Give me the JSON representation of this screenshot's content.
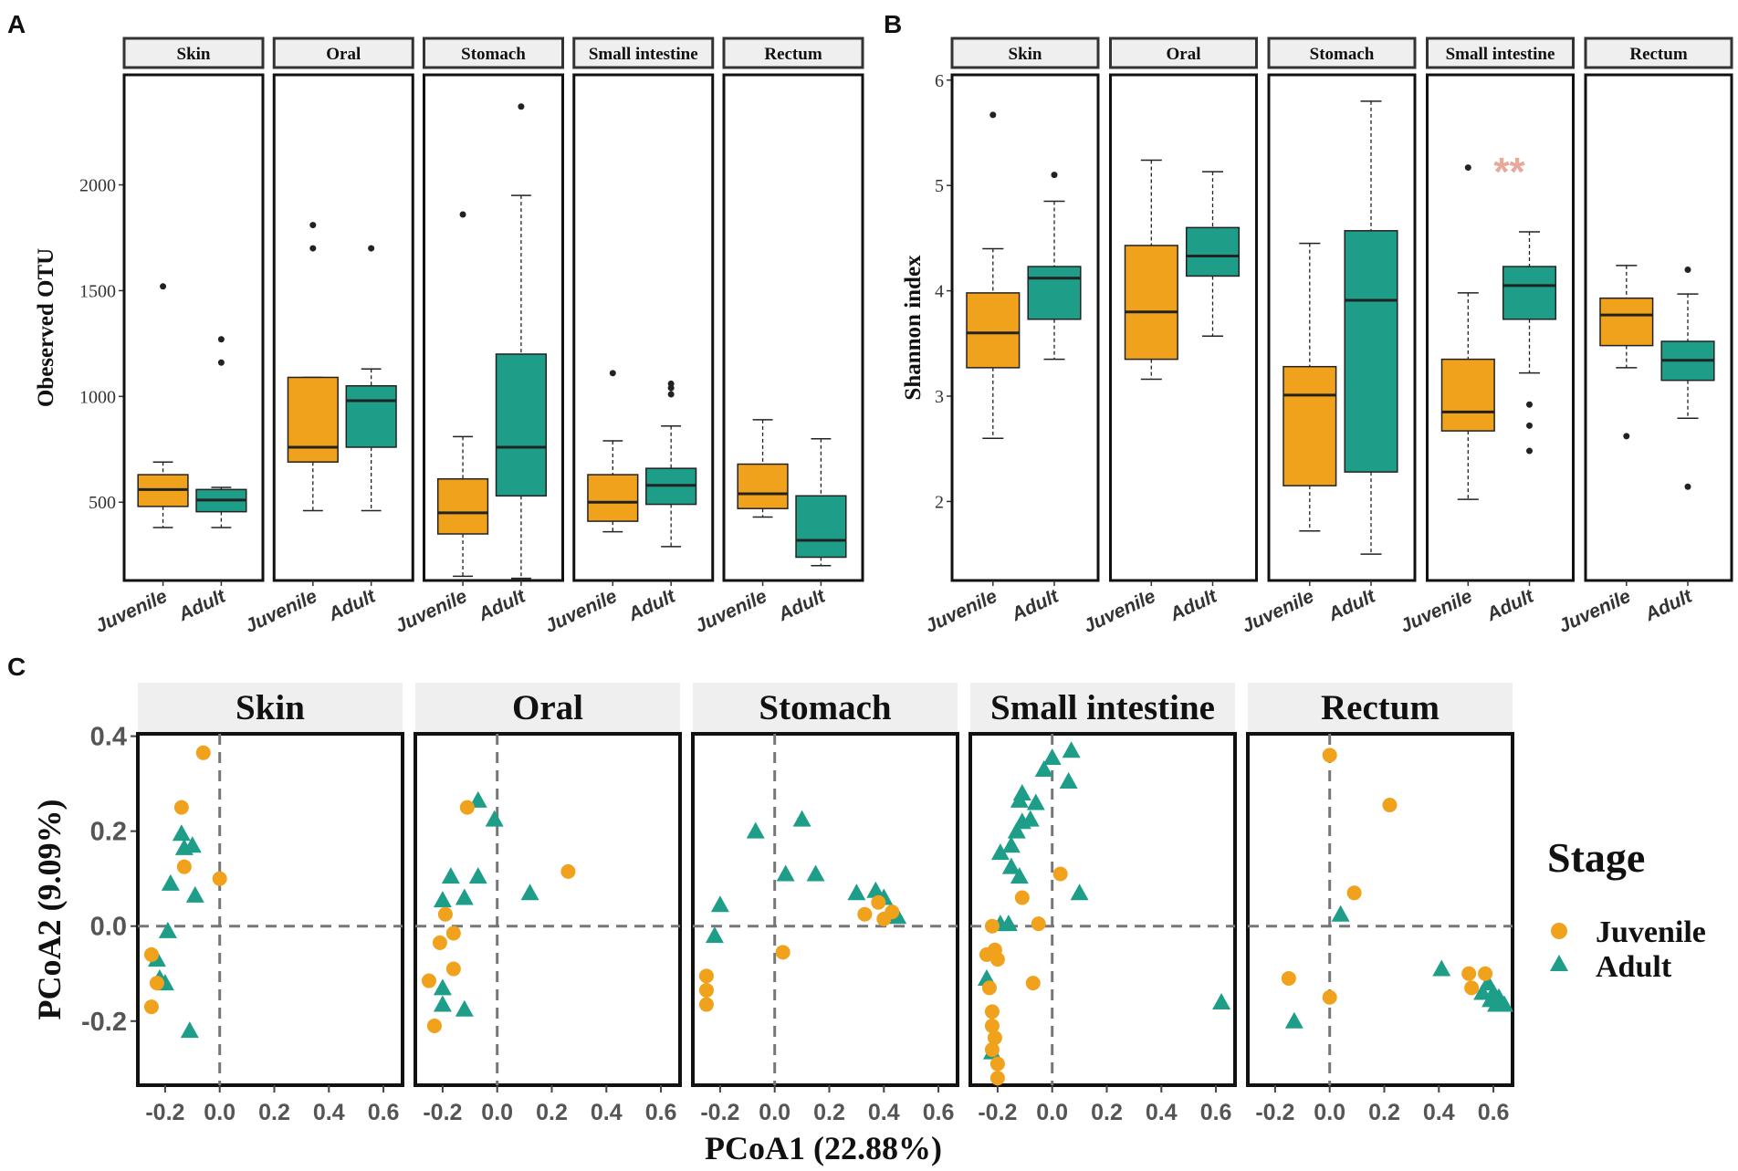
{
  "colors": {
    "juvenile": "#F0A21C",
    "adult": "#1E9E88",
    "panel_border": "#222222",
    "strip_fill": "#EFEFEF",
    "significance": "#E8A89A",
    "dashed": "#777777"
  },
  "panel_letters": [
    "A",
    "B",
    "C"
  ],
  "chart_data": [
    {
      "id": "A",
      "type": "box",
      "ylabel": "Obeserved OTU",
      "ylim": [
        130,
        2520
      ],
      "yticks": [
        500,
        1000,
        1500,
        2000
      ],
      "groups": [
        "Juvenile",
        "Adult"
      ],
      "facets": [
        {
          "title": "Skin",
          "boxes": [
            {
              "group": "Juvenile",
              "min": 380,
              "q1": 480,
              "median": 560,
              "q3": 630,
              "max": 690,
              "outliers": [
                1520
              ]
            },
            {
              "group": "Adult",
              "min": 380,
              "q1": 455,
              "median": 510,
              "q3": 560,
              "max": 570,
              "outliers": [
                1160,
                1270
              ]
            }
          ]
        },
        {
          "title": "Oral",
          "boxes": [
            {
              "group": "Juvenile",
              "min": 460,
              "q1": 690,
              "median": 760,
              "q3": 1090,
              "max": 1090,
              "outliers": [
                1700,
                1810
              ]
            },
            {
              "group": "Adult",
              "min": 460,
              "q1": 760,
              "median": 980,
              "q3": 1050,
              "max": 1130,
              "outliers": [
                1700
              ]
            }
          ]
        },
        {
          "title": "Stomach",
          "boxes": [
            {
              "group": "Juvenile",
              "min": 150,
              "q1": 350,
              "median": 450,
              "q3": 610,
              "max": 810,
              "outliers": [
                1860
              ]
            },
            {
              "group": "Adult",
              "min": 140,
              "q1": 530,
              "median": 760,
              "q3": 1200,
              "max": 1950,
              "outliers": [
                2370
              ]
            }
          ]
        },
        {
          "title": "Small intestine",
          "boxes": [
            {
              "group": "Juvenile",
              "min": 360,
              "q1": 410,
              "median": 500,
              "q3": 630,
              "max": 790,
              "outliers": [
                1110
              ]
            },
            {
              "group": "Adult",
              "min": 290,
              "q1": 490,
              "median": 580,
              "q3": 660,
              "max": 860,
              "outliers": [
                1010,
                1040,
                1060
              ]
            }
          ]
        },
        {
          "title": "Rectum",
          "boxes": [
            {
              "group": "Juvenile",
              "min": 430,
              "q1": 470,
              "median": 540,
              "q3": 680,
              "max": 890,
              "outliers": []
            },
            {
              "group": "Adult",
              "min": 200,
              "q1": 240,
              "median": 320,
              "q3": 530,
              "max": 800,
              "outliers": []
            }
          ]
        }
      ]
    },
    {
      "id": "B",
      "type": "box",
      "ylabel": "Shannon index",
      "ylim": [
        1.25,
        6.05
      ],
      "yticks": [
        2,
        3,
        4,
        5,
        6
      ],
      "groups": [
        "Juvenile",
        "Adult"
      ],
      "facets": [
        {
          "title": "Skin",
          "boxes": [
            {
              "group": "Juvenile",
              "min": 2.6,
              "q1": 3.27,
              "median": 3.6,
              "q3": 3.98,
              "max": 4.4,
              "outliers": [
                5.67
              ]
            },
            {
              "group": "Adult",
              "min": 3.35,
              "q1": 3.73,
              "median": 4.12,
              "q3": 4.23,
              "max": 4.85,
              "outliers": [
                5.1
              ]
            }
          ]
        },
        {
          "title": "Oral",
          "boxes": [
            {
              "group": "Juvenile",
              "min": 3.16,
              "q1": 3.35,
              "median": 3.8,
              "q3": 4.43,
              "max": 5.24,
              "outliers": []
            },
            {
              "group": "Adult",
              "min": 3.57,
              "q1": 4.14,
              "median": 4.33,
              "q3": 4.6,
              "max": 5.13,
              "outliers": []
            }
          ]
        },
        {
          "title": "Stomach",
          "boxes": [
            {
              "group": "Juvenile",
              "min": 1.72,
              "q1": 2.15,
              "median": 3.01,
              "q3": 3.28,
              "max": 4.45,
              "outliers": []
            },
            {
              "group": "Adult",
              "min": 1.5,
              "q1": 2.28,
              "median": 3.91,
              "q3": 4.57,
              "max": 5.8,
              "outliers": []
            }
          ]
        },
        {
          "title": "Small intestine",
          "annotation": "**",
          "boxes": [
            {
              "group": "Juvenile",
              "min": 2.02,
              "q1": 2.67,
              "median": 2.85,
              "q3": 3.35,
              "max": 3.98,
              "outliers": [
                5.17
              ]
            },
            {
              "group": "Adult",
              "min": 3.22,
              "q1": 3.73,
              "median": 4.05,
              "q3": 4.23,
              "max": 4.56,
              "outliers": [
                2.48,
                2.72,
                2.92
              ]
            }
          ]
        },
        {
          "title": "Rectum",
          "boxes": [
            {
              "group": "Juvenile",
              "min": 3.27,
              "q1": 3.48,
              "median": 3.77,
              "q3": 3.93,
              "max": 4.24,
              "outliers": [
                2.62
              ]
            },
            {
              "group": "Adult",
              "min": 2.79,
              "q1": 3.15,
              "median": 3.34,
              "q3": 3.52,
              "max": 3.97,
              "outliers": [
                2.14,
                4.2
              ]
            }
          ]
        }
      ]
    },
    {
      "id": "C",
      "type": "scatter",
      "xlabel": "PCoA1 (22.88%)",
      "ylabel": "PCoA2 (9.09%)",
      "xlim": [
        -0.3,
        0.67
      ],
      "ylim": [
        -0.335,
        0.405
      ],
      "xticks": [
        -0.2,
        0.0,
        0.2,
        0.4,
        0.6
      ],
      "xtick_labels": [
        "-0.2",
        "0.0",
        "0.2",
        "0.4",
        "0.6"
      ],
      "yticks": [
        -0.2,
        0.0,
        0.2,
        0.4
      ],
      "ytick_labels": [
        "-0.2",
        "0.0",
        "0.2",
        "0.4"
      ],
      "legend": {
        "title": "Stage",
        "entries": [
          "Juvenile",
          "Adult"
        ]
      },
      "facets": [
        {
          "title": "Skin",
          "juvenile": [
            [
              -0.06,
              0.365
            ],
            [
              -0.14,
              0.25
            ],
            [
              -0.13,
              0.125
            ],
            [
              0.0,
              0.1
            ],
            [
              -0.25,
              -0.06
            ],
            [
              -0.23,
              -0.12
            ],
            [
              -0.25,
              -0.17
            ]
          ],
          "adult": [
            [
              -0.14,
              0.195
            ],
            [
              -0.1,
              0.17
            ],
            [
              -0.13,
              0.165
            ],
            [
              -0.18,
              0.09
            ],
            [
              -0.09,
              0.065
            ],
            [
              -0.19,
              -0.01
            ],
            [
              -0.23,
              -0.07
            ],
            [
              -0.2,
              -0.12
            ],
            [
              -0.22,
              -0.11
            ],
            [
              -0.11,
              -0.22
            ]
          ]
        },
        {
          "title": "Oral",
          "juvenile": [
            [
              -0.11,
              0.25
            ],
            [
              0.26,
              0.115
            ],
            [
              -0.19,
              0.025
            ],
            [
              -0.21,
              -0.035
            ],
            [
              -0.16,
              -0.015
            ],
            [
              -0.16,
              -0.09
            ],
            [
              -0.25,
              -0.115
            ],
            [
              -0.23,
              -0.21
            ]
          ],
          "adult": [
            [
              -0.07,
              0.265
            ],
            [
              -0.01,
              0.225
            ],
            [
              -0.17,
              0.105
            ],
            [
              -0.07,
              0.105
            ],
            [
              0.12,
              0.07
            ],
            [
              -0.2,
              0.055
            ],
            [
              -0.12,
              0.06
            ],
            [
              -0.2,
              -0.13
            ],
            [
              -0.2,
              -0.165
            ],
            [
              -0.12,
              -0.175
            ]
          ]
        },
        {
          "title": "Stomach",
          "juvenile": [
            [
              0.03,
              -0.055
            ],
            [
              0.38,
              0.05
            ],
            [
              0.43,
              0.03
            ],
            [
              0.33,
              0.025
            ],
            [
              0.4,
              0.015
            ],
            [
              -0.25,
              -0.105
            ],
            [
              -0.25,
              -0.135
            ],
            [
              -0.25,
              -0.165
            ]
          ],
          "adult": [
            [
              -0.07,
              0.2
            ],
            [
              0.1,
              0.225
            ],
            [
              0.04,
              0.11
            ],
            [
              0.15,
              0.11
            ],
            [
              0.3,
              0.07
            ],
            [
              0.37,
              0.075
            ],
            [
              0.4,
              0.06
            ],
            [
              0.45,
              0.02
            ],
            [
              -0.2,
              0.045
            ],
            [
              -0.22,
              -0.02
            ]
          ]
        },
        {
          "title": "Small intestine",
          "juvenile": [
            [
              0.03,
              0.11
            ],
            [
              -0.11,
              0.06
            ],
            [
              -0.05,
              0.005
            ],
            [
              -0.22,
              0.0
            ],
            [
              -0.21,
              -0.05
            ],
            [
              -0.24,
              -0.06
            ],
            [
              -0.2,
              -0.07
            ],
            [
              -0.23,
              -0.13
            ],
            [
              -0.07,
              -0.12
            ],
            [
              -0.22,
              -0.18
            ],
            [
              -0.22,
              -0.21
            ],
            [
              -0.21,
              -0.235
            ],
            [
              -0.22,
              -0.26
            ],
            [
              -0.2,
              -0.29
            ],
            [
              -0.2,
              -0.32
            ]
          ],
          "adult": [
            [
              0.07,
              0.37
            ],
            [
              0.0,
              0.355
            ],
            [
              0.06,
              0.305
            ],
            [
              -0.03,
              0.33
            ],
            [
              -0.11,
              0.28
            ],
            [
              -0.12,
              0.265
            ],
            [
              -0.06,
              0.26
            ],
            [
              -0.08,
              0.225
            ],
            [
              -0.11,
              0.22
            ],
            [
              -0.13,
              0.2
            ],
            [
              -0.15,
              0.17
            ],
            [
              -0.19,
              0.155
            ],
            [
              -0.15,
              0.125
            ],
            [
              -0.12,
              0.105
            ],
            [
              0.1,
              0.07
            ],
            [
              -0.16,
              0.005
            ],
            [
              -0.19,
              0.005
            ],
            [
              -0.24,
              -0.11
            ],
            [
              -0.22,
              -0.265
            ],
            [
              0.62,
              -0.16
            ]
          ]
        },
        {
          "title": "Rectum",
          "juvenile": [
            [
              0.0,
              0.36
            ],
            [
              0.22,
              0.255
            ],
            [
              0.09,
              0.07
            ],
            [
              -0.15,
              -0.11
            ],
            [
              0.0,
              -0.15
            ],
            [
              0.51,
              -0.1
            ],
            [
              0.52,
              -0.13
            ],
            [
              0.57,
              -0.1
            ]
          ],
          "adult": [
            [
              0.04,
              0.025
            ],
            [
              -0.13,
              -0.2
            ],
            [
              0.41,
              -0.09
            ],
            [
              0.56,
              -0.14
            ],
            [
              0.58,
              -0.12
            ],
            [
              0.59,
              -0.155
            ],
            [
              0.6,
              -0.14
            ],
            [
              0.61,
              -0.165
            ],
            [
              0.62,
              -0.15
            ],
            [
              0.64,
              -0.165
            ]
          ]
        }
      ]
    }
  ]
}
